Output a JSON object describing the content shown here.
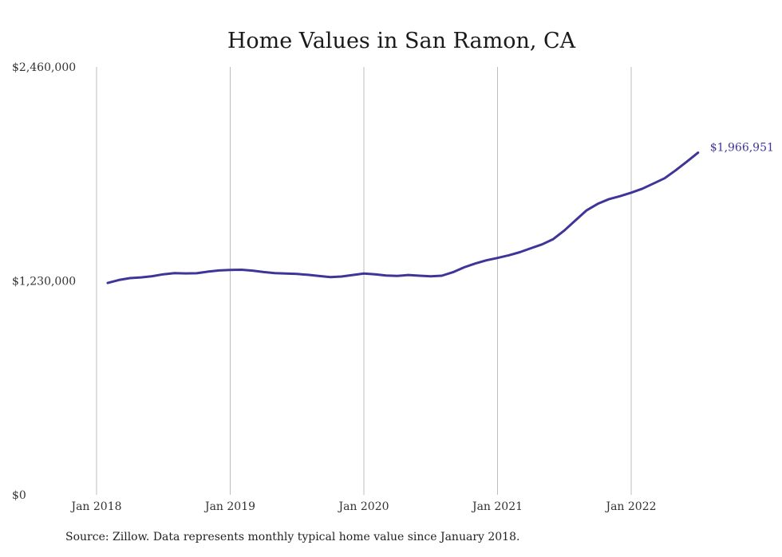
{
  "chart_data": {
    "type": "line",
    "title": "Home Values in San Ramon, CA",
    "xlabel": "",
    "ylabel": "",
    "x_ticks": [
      "Jan 2018",
      "Jan 2019",
      "Jan 2020",
      "Jan 2021",
      "Jan 2022"
    ],
    "y_ticks": [
      "$0",
      "$1,230,000",
      "$2,460,000"
    ],
    "y_tick_values": [
      0,
      1230000,
      2460000
    ],
    "ylim": [
      0,
      2460000
    ],
    "xlim": [
      "2018-01",
      "2022-12"
    ],
    "grid": "vertical",
    "series": [
      {
        "color": "#3f3599",
        "end_label": "$1,966,951",
        "x": [
          "2018-02",
          "2018-03",
          "2018-04",
          "2018-05",
          "2018-06",
          "2018-07",
          "2018-08",
          "2018-09",
          "2018-10",
          "2018-11",
          "2018-12",
          "2019-01",
          "2019-02",
          "2019-03",
          "2019-04",
          "2019-05",
          "2019-06",
          "2019-07",
          "2019-08",
          "2019-09",
          "2019-10",
          "2019-11",
          "2019-12",
          "2020-01",
          "2020-02",
          "2020-03",
          "2020-04",
          "2020-05",
          "2020-06",
          "2020-07",
          "2020-08",
          "2020-09",
          "2020-10",
          "2020-11",
          "2020-12",
          "2021-01",
          "2021-02",
          "2021-03",
          "2021-04",
          "2021-05",
          "2021-06",
          "2021-07",
          "2021-08",
          "2021-09",
          "2021-10",
          "2021-11",
          "2021-12",
          "2022-01",
          "2022-02",
          "2022-03",
          "2022-04",
          "2022-05",
          "2022-06",
          "2022-07"
        ],
        "values": [
          1218000,
          1235000,
          1246000,
          1250000,
          1257000,
          1268000,
          1275000,
          1273000,
          1274000,
          1283000,
          1290000,
          1293000,
          1294000,
          1289000,
          1281000,
          1275000,
          1272000,
          1270000,
          1265000,
          1258000,
          1252000,
          1255000,
          1264000,
          1272000,
          1268000,
          1261000,
          1259000,
          1264000,
          1260000,
          1256000,
          1260000,
          1280000,
          1308000,
          1330000,
          1348000,
          1362000,
          1377000,
          1395000,
          1418000,
          1440000,
          1470000,
          1520000,
          1578000,
          1636000,
          1673000,
          1700000,
          1717000,
          1737000,
          1760000,
          1790000,
          1820000,
          1866000,
          1916000,
          1966951
        ]
      }
    ]
  },
  "source": "Source: Zillow. Data represents monthly typical home value since January 2018."
}
